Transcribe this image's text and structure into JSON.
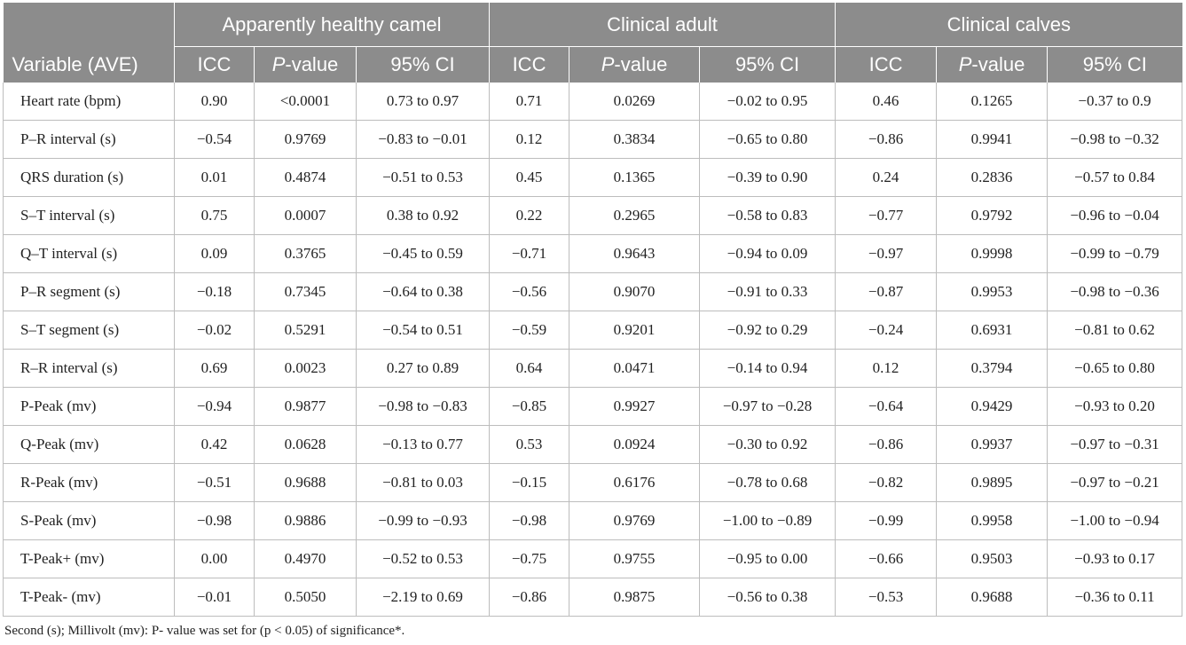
{
  "table": {
    "group_headers": [
      "Apparently healthy camel",
      "Clinical adult",
      "Clinical calves"
    ],
    "column_headers": {
      "variable": "Variable (AVE)",
      "icc": "ICC",
      "p_italic": "P",
      "p_rest": "-value",
      "ci": "95% CI"
    },
    "rows": [
      {
        "variable": "Heart rate (bpm)",
        "healthy": [
          "0.90",
          "<0.0001",
          "0.73 to 0.97"
        ],
        "adult": [
          "0.71",
          "0.0269",
          "−0.02 to 0.95"
        ],
        "calves": [
          "0.46",
          "0.1265",
          "−0.37 to 0.9"
        ]
      },
      {
        "variable": "P–R interval (s)",
        "healthy": [
          "−0.54",
          "0.9769",
          "−0.83 to −0.01"
        ],
        "adult": [
          "0.12",
          "0.3834",
          "−0.65 to 0.80"
        ],
        "calves": [
          "−0.86",
          "0.9941",
          "−0.98 to −0.32"
        ]
      },
      {
        "variable": "QRS duration (s)",
        "healthy": [
          "0.01",
          "0.4874",
          "−0.51 to 0.53"
        ],
        "adult": [
          "0.45",
          "0.1365",
          "−0.39 to 0.90"
        ],
        "calves": [
          "0.24",
          "0.2836",
          "−0.57 to 0.84"
        ]
      },
      {
        "variable": "S–T interval (s)",
        "healthy": [
          "0.75",
          "0.0007",
          "0.38 to 0.92"
        ],
        "adult": [
          "0.22",
          "0.2965",
          "−0.58 to 0.83"
        ],
        "calves": [
          "−0.77",
          "0.9792",
          "−0.96 to −0.04"
        ]
      },
      {
        "variable": "Q–T interval (s)",
        "healthy": [
          "0.09",
          "0.3765",
          "−0.45 to 0.59"
        ],
        "adult": [
          "−0.71",
          "0.9643",
          "−0.94 to 0.09"
        ],
        "calves": [
          "−0.97",
          "0.9998",
          "−0.99 to −0.79"
        ]
      },
      {
        "variable": "P–R segment (s)",
        "healthy": [
          "−0.18",
          "0.7345",
          "−0.64 to 0.38"
        ],
        "adult": [
          "−0.56",
          "0.9070",
          "−0.91 to 0.33"
        ],
        "calves": [
          "−0.87",
          "0.9953",
          "−0.98 to −0.36"
        ]
      },
      {
        "variable": "S–T segment (s)",
        "healthy": [
          "−0.02",
          "0.5291",
          "−0.54 to 0.51"
        ],
        "adult": [
          "−0.59",
          "0.9201",
          "−0.92 to 0.29"
        ],
        "calves": [
          "−0.24",
          "0.6931",
          "−0.81 to 0.62"
        ]
      },
      {
        "variable": "R–R interval (s)",
        "healthy": [
          "0.69",
          "0.0023",
          "0.27 to 0.89"
        ],
        "adult": [
          "0.64",
          "0.0471",
          "−0.14 to 0.94"
        ],
        "calves": [
          "0.12",
          "0.3794",
          "−0.65 to 0.80"
        ]
      },
      {
        "variable": "P-Peak (mv)",
        "healthy": [
          "−0.94",
          "0.9877",
          "−0.98 to −0.83"
        ],
        "adult": [
          "−0.85",
          "0.9927",
          "−0.97 to −0.28"
        ],
        "calves": [
          "−0.64",
          "0.9429",
          "−0.93 to 0.20"
        ]
      },
      {
        "variable": "Q-Peak (mv)",
        "healthy": [
          "0.42",
          "0.0628",
          "−0.13 to 0.77"
        ],
        "adult": [
          "0.53",
          "0.0924",
          "−0.30 to 0.92"
        ],
        "calves": [
          "−0.86",
          "0.9937",
          "−0.97 to −0.31"
        ]
      },
      {
        "variable": "R-Peak (mv)",
        "healthy": [
          "−0.51",
          "0.9688",
          "−0.81 to 0.03"
        ],
        "adult": [
          "−0.15",
          "0.6176",
          "−0.78 to 0.68"
        ],
        "calves": [
          "−0.82",
          "0.9895",
          "−0.97 to −0.21"
        ]
      },
      {
        "variable": "S-Peak (mv)",
        "healthy": [
          "−0.98",
          "0.9886",
          "−0.99 to −0.93"
        ],
        "adult": [
          "−0.98",
          "0.9769",
          "−1.00 to −0.89"
        ],
        "calves": [
          "−0.99",
          "0.9958",
          "−1.00 to −0.94"
        ]
      },
      {
        "variable": "T-Peak+ (mv)",
        "healthy": [
          "0.00",
          "0.4970",
          "−0.52 to 0.53"
        ],
        "adult": [
          "−0.75",
          "0.9755",
          "−0.95 to 0.00"
        ],
        "calves": [
          "−0.66",
          "0.9503",
          "−0.93 to 0.17"
        ]
      },
      {
        "variable": "T-Peak- (mv)",
        "healthy": [
          "−0.01",
          "0.5050",
          "−2.19 to 0.69"
        ],
        "adult": [
          "−0.86",
          "0.9875",
          "−0.56 to 0.38"
        ],
        "calves": [
          "−0.53",
          "0.9688",
          "−0.36 to 0.11"
        ]
      }
    ],
    "footnote": "Second (s); Millivolt (mv): P- value was set for (p < 0.05) of significance*."
  }
}
